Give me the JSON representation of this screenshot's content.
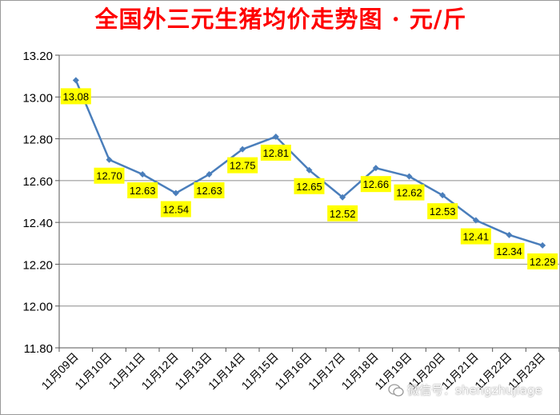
{
  "title": "全国外三元生猪均价走势图 · 元/斤",
  "watermark": "微信号：shengzhujiage",
  "chart_data": {
    "type": "line",
    "categories": [
      "11月09日",
      "11月10日",
      "11月11日",
      "11月12日",
      "11月13日",
      "11月14日",
      "11月15日",
      "11月16日",
      "11月17日",
      "11月18日",
      "11月19日",
      "11月20日",
      "11月21日",
      "11月22日",
      "11月23日"
    ],
    "series": [
      {
        "values": [
          13.08,
          12.7,
          12.63,
          12.54,
          12.63,
          12.75,
          12.81,
          12.65,
          12.52,
          12.66,
          12.62,
          12.53,
          12.41,
          12.34,
          12.29
        ],
        "labels": [
          "13.08",
          "12.70",
          "12.63",
          "12.54",
          "12.63",
          "12.75",
          "12.81",
          "12.65",
          "12.52",
          "12.66",
          "12.62",
          "12.53",
          "12.41",
          "12.34",
          "12.29"
        ]
      }
    ],
    "ylim": [
      11.8,
      13.2
    ],
    "yticks": [
      "11.80",
      "12.00",
      "12.20",
      "12.40",
      "12.60",
      "12.80",
      "13.00",
      "13.20"
    ],
    "grid": true,
    "legend": "none",
    "colors": {
      "line": "#4a7ebb",
      "label_bg": "#ffff00",
      "title": "#ff0000",
      "grid": "#8c8c8c"
    }
  }
}
